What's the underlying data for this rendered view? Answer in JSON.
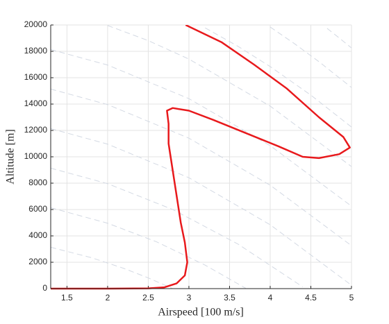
{
  "chart_data": {
    "type": "line",
    "xlabel": "Airspeed [100 m/s]",
    "ylabel": "Altitude [m]",
    "xlim": [
      1.3,
      5
    ],
    "ylim": [
      0,
      20000
    ],
    "xticks": [
      1.5,
      2,
      2.5,
      3,
      3.5,
      4,
      4.5,
      5
    ],
    "yticks": [
      0,
      2000,
      4000,
      6000,
      8000,
      10000,
      12000,
      14000,
      16000,
      18000,
      20000
    ],
    "grid": true,
    "series": [
      {
        "color": "#d3d9e3",
        "linestyle": "dashed",
        "x": [
          1.3,
          1.8,
          2.2,
          2.5,
          2.8
        ],
        "values": [
          3139,
          2349,
          1533,
          814,
          4
        ]
      },
      {
        "color": "#d3d9e3",
        "linestyle": "dashed",
        "x": [
          1.3,
          2.0,
          2.6,
          3.2,
          3.7
        ],
        "values": [
          6139,
          4961,
          3554,
          1781,
          22
        ]
      },
      {
        "color": "#d3d9e3",
        "linestyle": "dashed",
        "x": [
          1.3,
          2.0,
          2.8,
          3.6,
          4.4
        ],
        "values": [
          9139,
          7961,
          6004,
          3394,
          132
        ]
      },
      {
        "color": "#d3d9e3",
        "linestyle": "dashed",
        "x": [
          1.3,
          2.0,
          3.0,
          4.0,
          5.0
        ],
        "values": [
          12139,
          10961,
          8413,
          4845,
          257
        ]
      },
      {
        "color": "#d3d9e3",
        "linestyle": "dashed",
        "x": [
          1.3,
          2.0,
          3.0,
          4.0,
          5.0
        ],
        "values": [
          15139,
          13961,
          11413,
          7845,
          3257
        ]
      },
      {
        "color": "#d3d9e3",
        "linestyle": "dashed",
        "x": [
          1.3,
          2.0,
          3.0,
          4.0,
          5.0
        ],
        "values": [
          18139,
          16961,
          14413,
          10845,
          6257
        ]
      },
      {
        "color": "#d3d9e3",
        "linestyle": "dashed",
        "x": [
          2.0,
          2.5,
          3.0,
          4.0,
          5.0
        ],
        "values": [
          19961,
          18814,
          17413,
          13845,
          9257
        ]
      },
      {
        "color": "#d3d9e3",
        "linestyle": "dashed",
        "x": [
          3.2,
          3.6,
          4.0,
          4.5,
          5.0
        ],
        "values": [
          19781,
          18394,
          16845,
          14679,
          12257
        ]
      },
      {
        "color": "#d3d9e3",
        "linestyle": "dashed",
        "x": [
          4.0,
          4.3,
          4.6,
          5.0
        ],
        "values": [
          19845,
          18576,
          17215,
          15257
        ]
      },
      {
        "color": "#d3d9e3",
        "linestyle": "dashed",
        "x": [
          4.7,
          4.85,
          5.0
        ],
        "values": [
          19741,
          19011,
          18257
        ]
      },
      {
        "color": "#e8191c",
        "linestyle": "solid",
        "x": [
          1.3,
          2.0,
          2.5,
          2.7,
          2.85,
          2.95,
          2.98,
          2.95,
          2.9,
          2.85,
          2.8,
          2.75,
          2.75,
          2.73,
          2.8,
          3.0,
          3.3,
          3.7,
          4.1,
          4.4,
          4.6,
          4.85,
          4.98,
          4.9,
          4.6,
          4.2,
          3.8,
          3.4,
          2.96
        ],
        "values": [
          0,
          0,
          20,
          100,
          400,
          1000,
          2000,
          3500,
          5000,
          7000,
          9000,
          11000,
          12500,
          13500,
          13700,
          13500,
          12800,
          11800,
          10800,
          10000,
          9900,
          10200,
          10700,
          11500,
          13000,
          15200,
          17000,
          18700,
          20000
        ]
      }
    ]
  }
}
